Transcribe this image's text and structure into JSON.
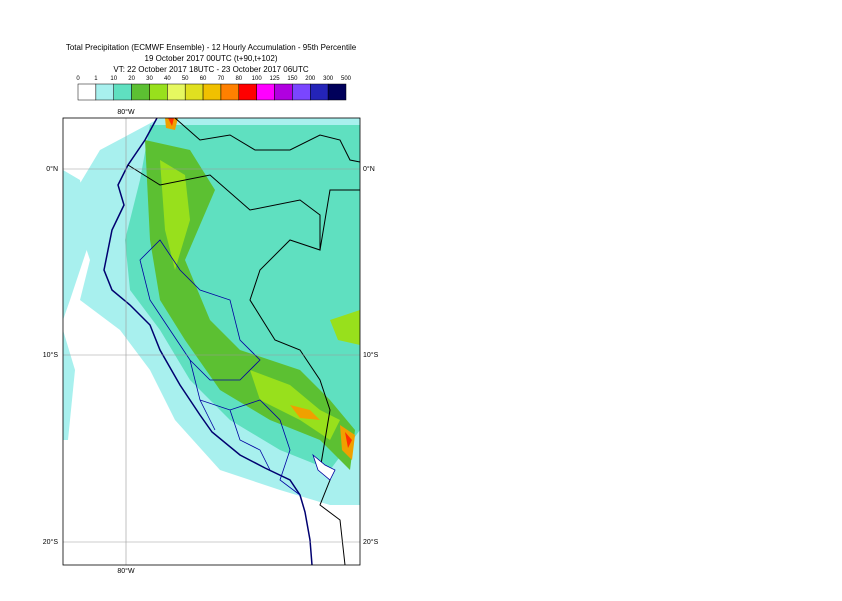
{
  "header": {
    "title": "Total Precipitation (ECMWF Ensemble) - 12 Hourly Accumulation - 95th Percentile",
    "line2": "19 October 2017 00UTC (t+90,t+102)",
    "line3": "VT: 22 October 2017 18UTC - 23 October 2017 06UTC"
  },
  "legend": {
    "ticks": [
      "0",
      "1",
      "10",
      "20",
      "30",
      "40",
      "50",
      "60",
      "70",
      "80",
      "100",
      "125",
      "150",
      "200",
      "300",
      "500"
    ],
    "colors": [
      "#ffffff",
      "#a8f0ee",
      "#5fe0c0",
      "#5cc032",
      "#98e01c",
      "#e6f860",
      "#e0e020",
      "#f0c000",
      "#ff8000",
      "#ff0000",
      "#ff00ff",
      "#b000e0",
      "#7a46ff",
      "#2424b8",
      "#00005a"
    ]
  },
  "map": {
    "meridian": "80°W",
    "parallels": [
      "0°N",
      "10°S",
      "20°S"
    ]
  }
}
